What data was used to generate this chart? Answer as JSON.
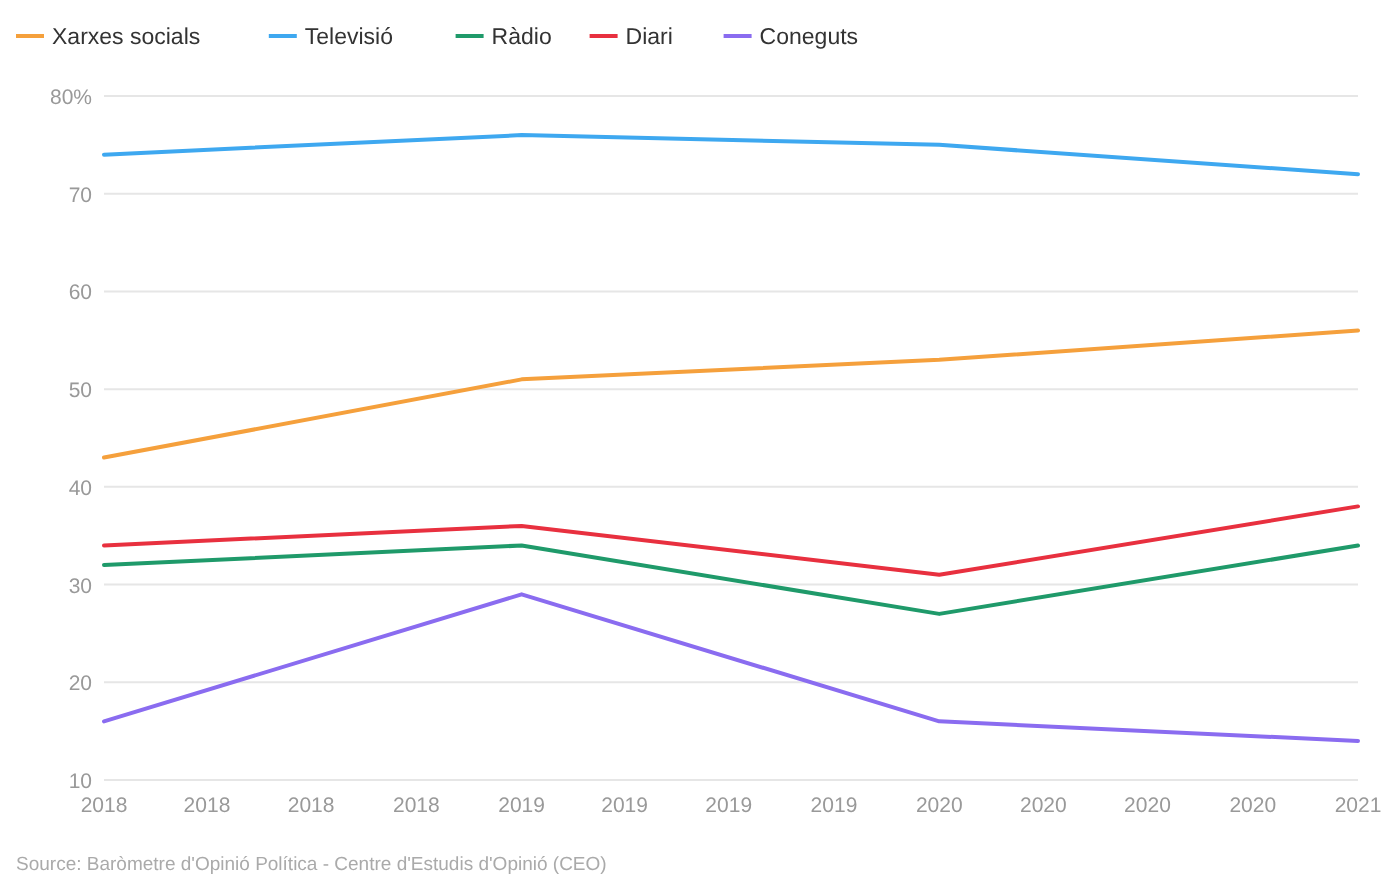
{
  "chart_data": {
    "type": "line",
    "x": [
      "2018",
      "2019",
      "2020",
      "2021"
    ],
    "series": [
      {
        "name": "Xarxes socials",
        "color": "#f5a03c",
        "values": [
          43,
          51,
          53,
          56
        ]
      },
      {
        "name": "Televisió",
        "color": "#3ea8f0",
        "values": [
          74,
          76,
          75,
          72
        ]
      },
      {
        "name": "Ràdio",
        "color": "#1f9a6a",
        "values": [
          32,
          34,
          27,
          34
        ]
      },
      {
        "name": "Diari",
        "color": "#e8303f",
        "values": [
          34,
          36,
          31,
          38
        ]
      },
      {
        "name": "Coneguts",
        "color": "#8a6cf0",
        "values": [
          16,
          29,
          16,
          14
        ]
      }
    ],
    "xlim": [
      "2018",
      "2021"
    ],
    "xticks": [
      {
        "value": "2018-01",
        "label": "2018"
      },
      {
        "value": "2018-04",
        "label": "2018"
      },
      {
        "value": "2018-07",
        "label": "2018"
      },
      {
        "value": "2018-10",
        "label": "2018"
      },
      {
        "value": "2019-01",
        "label": "2019"
      },
      {
        "value": "2019-04",
        "label": "2019"
      },
      {
        "value": "2019-07",
        "label": "2019"
      },
      {
        "value": "2019-10",
        "label": "2019"
      },
      {
        "value": "2020-01",
        "label": "2020"
      },
      {
        "value": "2020-04",
        "label": "2020"
      },
      {
        "value": "2020-07",
        "label": "2020"
      },
      {
        "value": "2020-10",
        "label": "2020"
      },
      {
        "value": "2021-01",
        "label": "2021"
      }
    ],
    "ylim": [
      10,
      80
    ],
    "yticks": [
      10,
      20,
      30,
      40,
      50,
      60,
      70,
      {
        "value": 80,
        "label": "80%"
      }
    ],
    "grid": "y",
    "legend": "top left",
    "marker": "none",
    "line_style": "solid",
    "annotations": [
      "Source: Baròmetre d'Opinió Política - Centre d'Estudis d'Opinió (CEO)"
    ]
  }
}
